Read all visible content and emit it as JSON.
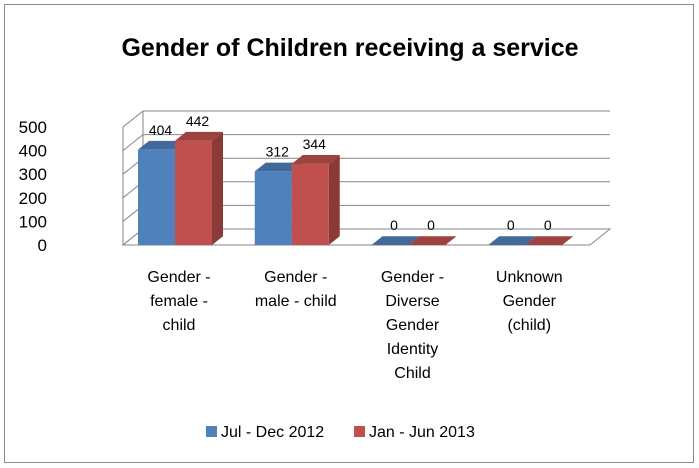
{
  "chart_data": {
    "type": "bar",
    "title": "Gender of Children receiving a service",
    "categories": [
      [
        "Gender -",
        "female -",
        "child"
      ],
      [
        "Gender -",
        "male - child"
      ],
      [
        "Gender -",
        "Diverse",
        "Gender",
        "Identity",
        "Child"
      ],
      [
        "Unknown",
        "Gender",
        "(child)"
      ]
    ],
    "series": [
      {
        "name": "Jul - Dec  2012",
        "values": [
          404,
          312,
          0,
          0
        ],
        "color": "#4f81bd"
      },
      {
        "name": "Jan - Jun 2013",
        "values": [
          442,
          344,
          0,
          0
        ],
        "color": "#c0504d"
      }
    ],
    "y_ticks": [
      0,
      100,
      200,
      300,
      400,
      500
    ],
    "ylim": [
      0,
      500
    ],
    "grid": true,
    "legend_position": "bottom",
    "style": "3d-clustered-column"
  }
}
